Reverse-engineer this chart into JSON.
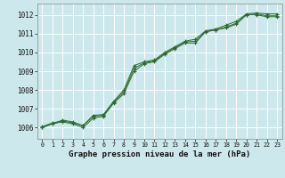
{
  "background_color": "#cce8ec",
  "grid_color": "#ffffff",
  "line_color": "#2d6a2d",
  "marker_color": "#2d6a2d",
  "title": "Graphe pression niveau de la mer (hPa)",
  "ylim": [
    1005.4,
    1012.6
  ],
  "xlim": [
    -0.5,
    23.5
  ],
  "yticks": [
    1006,
    1007,
    1008,
    1009,
    1010,
    1011,
    1012
  ],
  "xticks": [
    0,
    1,
    2,
    3,
    4,
    5,
    6,
    7,
    8,
    9,
    10,
    11,
    12,
    13,
    14,
    15,
    16,
    17,
    18,
    19,
    20,
    21,
    22,
    23
  ],
  "series": [
    [
      1006.0,
      1006.2,
      1006.3,
      1006.2,
      1006.0,
      1006.5,
      1006.6,
      1007.3,
      1007.8,
      1009.0,
      1009.4,
      1009.5,
      1009.9,
      1010.2,
      1010.5,
      1010.5,
      1011.1,
      1011.2,
      1011.3,
      1011.5,
      1012.0,
      1012.0,
      1011.9,
      1011.9
    ],
    [
      1006.0,
      1006.2,
      1006.4,
      1006.3,
      1006.1,
      1006.6,
      1006.65,
      1007.35,
      1007.9,
      1009.15,
      1009.45,
      1009.55,
      1009.95,
      1010.25,
      1010.55,
      1010.6,
      1011.1,
      1011.2,
      1011.35,
      1011.55,
      1012.0,
      1012.05,
      1011.95,
      1011.95
    ],
    [
      1006.05,
      1006.25,
      1006.35,
      1006.25,
      1006.1,
      1006.65,
      1006.7,
      1007.4,
      1008.0,
      1009.3,
      1009.5,
      1009.6,
      1010.0,
      1010.3,
      1010.6,
      1010.7,
      1011.15,
      1011.25,
      1011.45,
      1011.65,
      1012.05,
      1012.1,
      1012.05,
      1012.05
    ]
  ],
  "title_fontsize": 6.5,
  "tick_fontsize": 5.5,
  "ytick_fontsize": 5.5,
  "xtick_fontsize": 4.8
}
